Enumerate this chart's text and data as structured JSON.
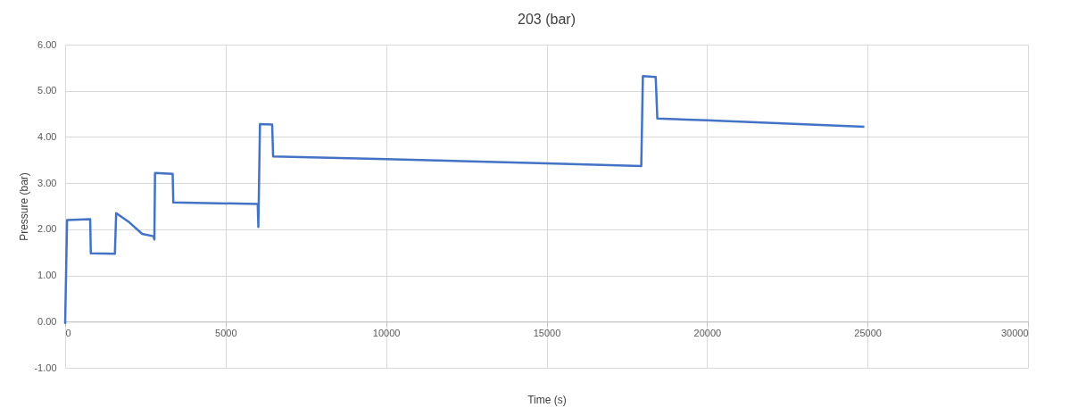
{
  "chart_data": {
    "type": "line",
    "title": "203 (bar)",
    "xlabel": "Time (s)",
    "ylabel": "Pressure (bar)",
    "x": [
      0,
      60,
      780,
      800,
      1550,
      1590,
      2000,
      2400,
      2750,
      2780,
      2800,
      3350,
      3370,
      6000,
      6020,
      6070,
      6450,
      6480,
      10000,
      15000,
      17950,
      18000,
      18400,
      18450,
      20000,
      24900
    ],
    "series": [
      {
        "color": "#4472c4",
        "values": [
          -0.05,
          2.2,
          2.22,
          1.48,
          1.47,
          2.35,
          2.15,
          1.9,
          1.85,
          1.78,
          3.22,
          3.2,
          2.58,
          2.55,
          2.05,
          4.28,
          4.27,
          3.58,
          3.52,
          3.43,
          3.37,
          5.32,
          5.3,
          4.4,
          4.36,
          4.22
        ]
      }
    ],
    "xlim": [
      0,
      30000
    ],
    "xticks": [
      0,
      5000,
      10000,
      15000,
      20000,
      25000,
      30000
    ],
    "ylim": [
      -1,
      6
    ],
    "yticks": [
      {
        "value": -1,
        "label": "-1.00"
      },
      {
        "value": 0,
        "label": "0.00"
      },
      {
        "value": 1,
        "label": "1.00"
      },
      {
        "value": 2,
        "label": "2.00"
      },
      {
        "value": 3,
        "label": "3.00"
      },
      {
        "value": 4,
        "label": "4.00"
      },
      {
        "value": 5,
        "label": "5.00"
      },
      {
        "value": 6,
        "label": "6.00"
      }
    ],
    "grid": true,
    "marker": "none",
    "line_style": "solid"
  }
}
